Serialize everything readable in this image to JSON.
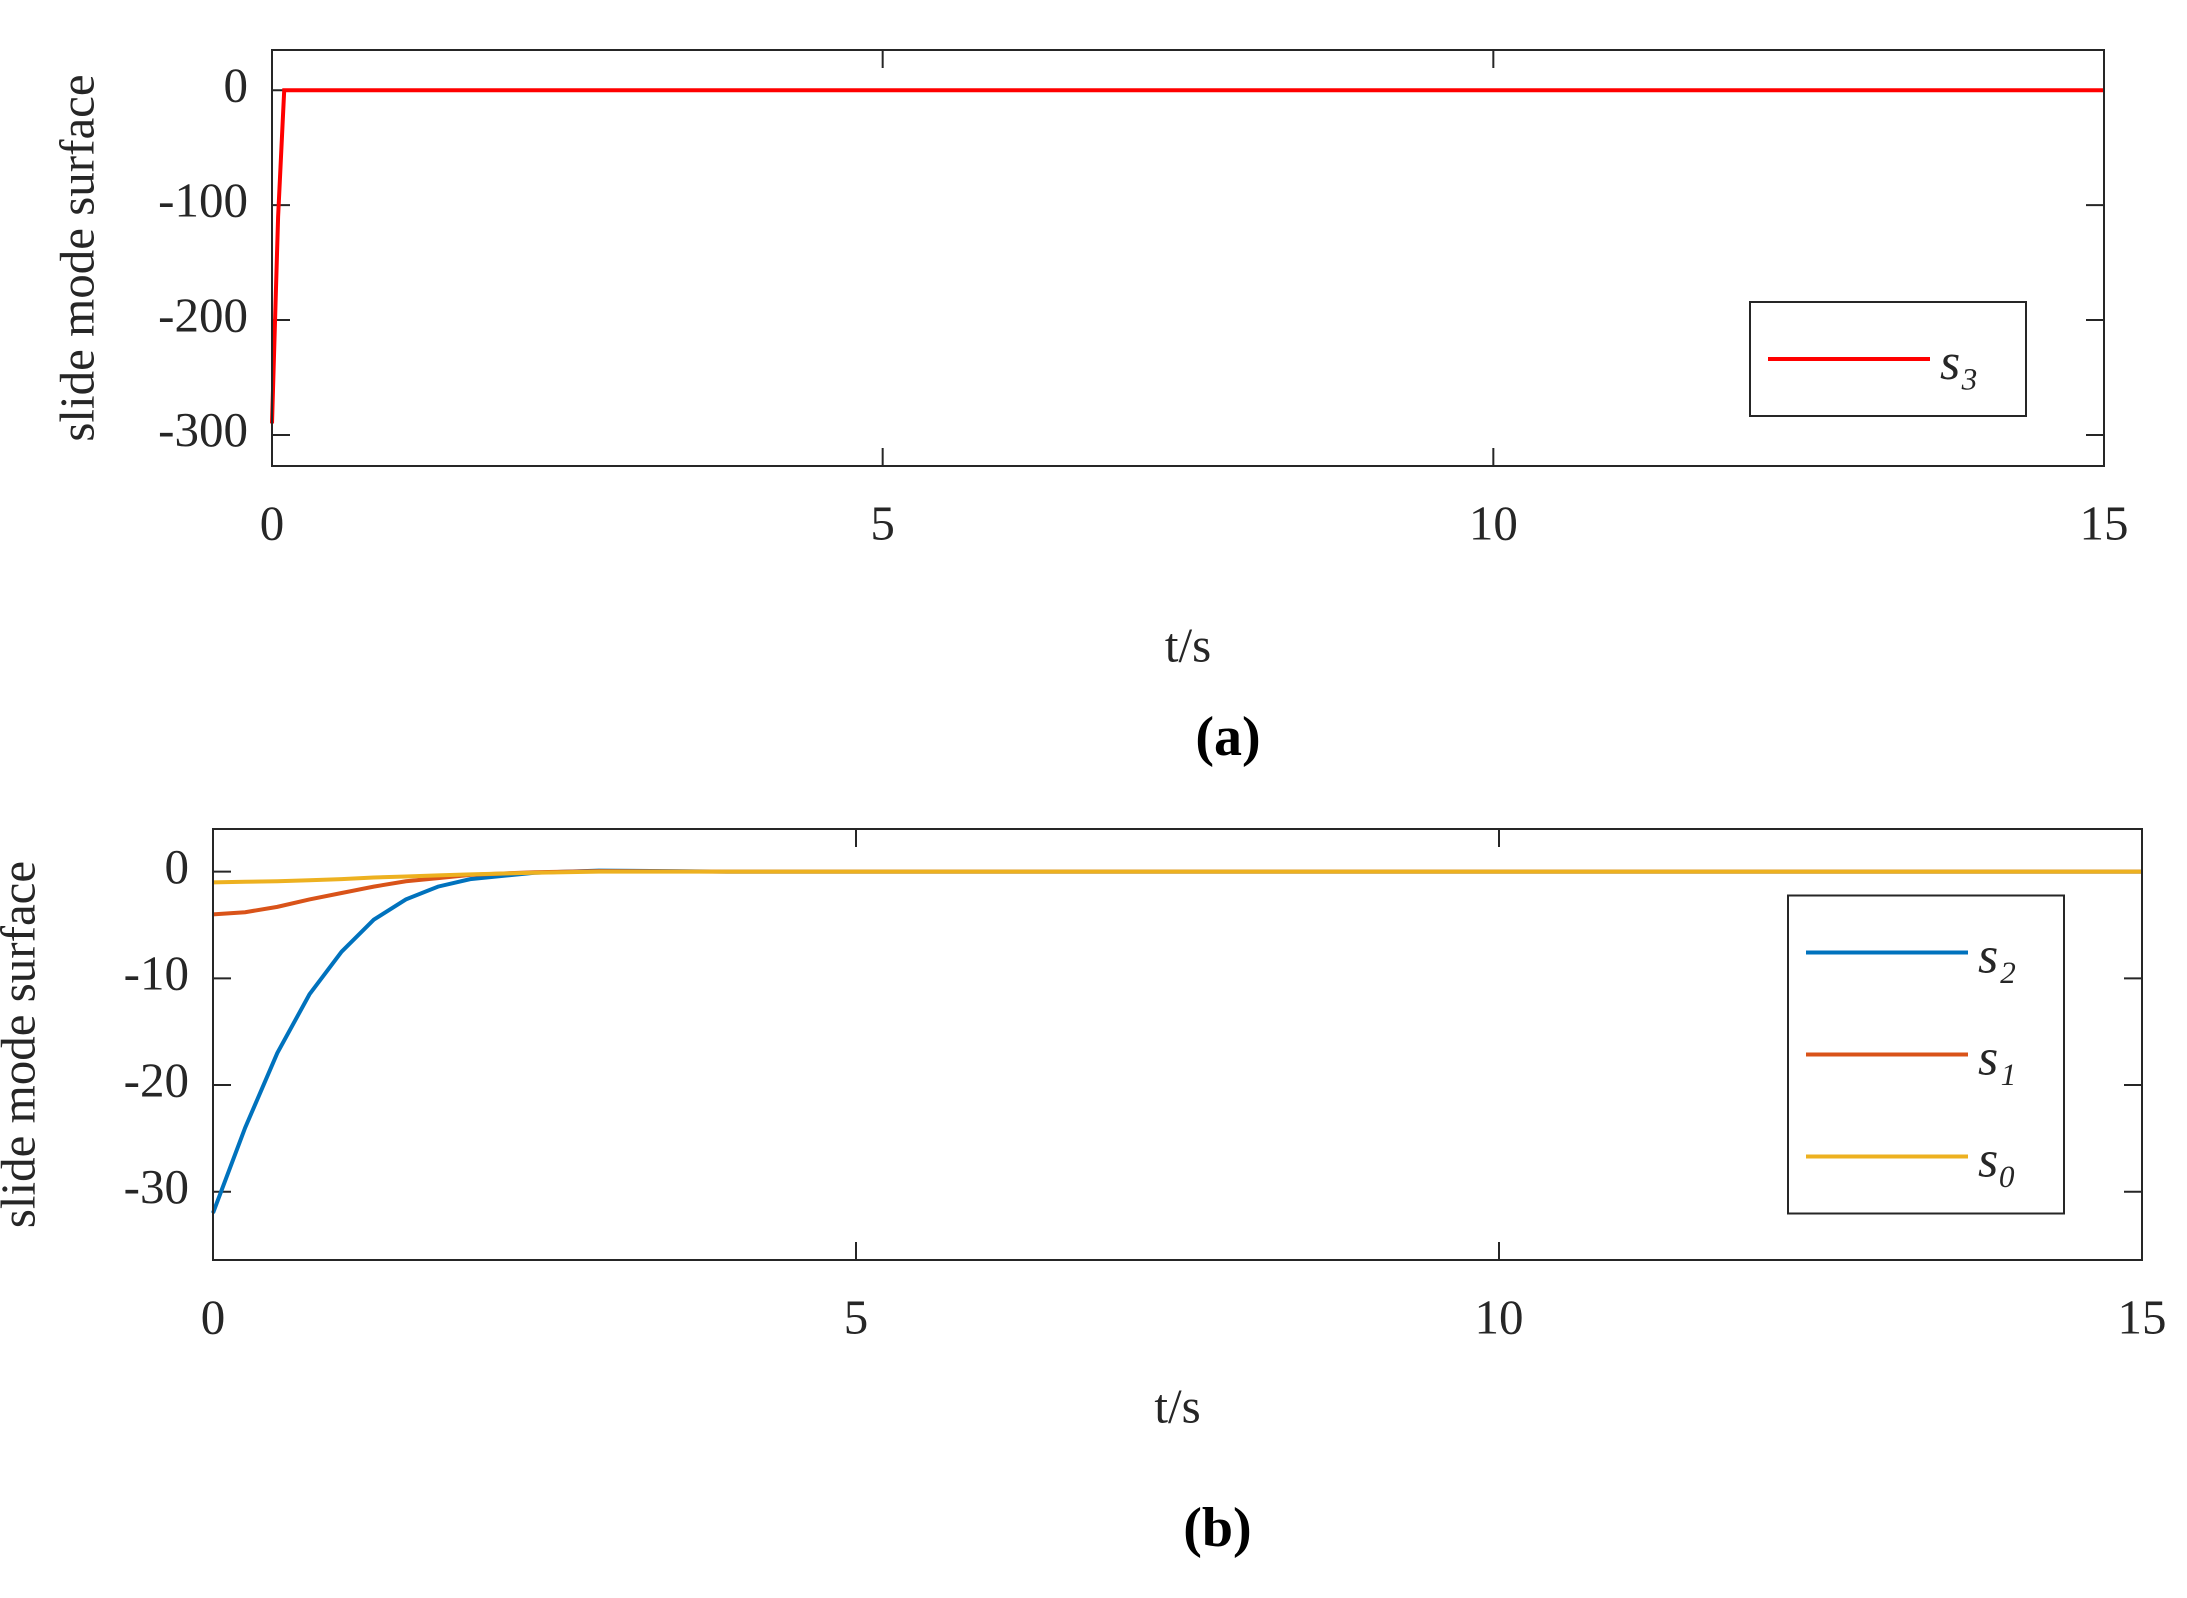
{
  "chart_data": [
    {
      "type": "line",
      "caption": "(a)",
      "xlabel": "t/s",
      "ylabel": "slide mode surface",
      "x": [
        0,
        0.05,
        0.1,
        0.5,
        15
      ],
      "series": [
        {
          "name": "s₃",
          "color": "#ff0000",
          "values": [
            -290,
            -110,
            0,
            0,
            0
          ]
        }
      ],
      "xlim": [
        0,
        15
      ],
      "xticks": [
        0,
        5,
        10,
        15
      ],
      "ylim": [
        -327,
        35
      ],
      "yticks": [
        -300,
        -200,
        -100,
        0
      ],
      "legend": "southeast"
    },
    {
      "type": "line",
      "caption": "(b)",
      "xlabel": "t/s",
      "ylabel": "slide mode surface",
      "x": [
        0,
        0.25,
        0.5,
        0.75,
        1,
        1.25,
        1.5,
        1.75,
        2,
        2.5,
        3,
        4,
        15
      ],
      "series": [
        {
          "name": "s₂",
          "color": "#0072bd",
          "values": [
            -32,
            -24,
            -17,
            -11.5,
            -7.5,
            -4.5,
            -2.6,
            -1.4,
            -0.7,
            -0.1,
            0.1,
            0,
            0
          ]
        },
        {
          "name": "s₁",
          "color": "#d95319",
          "values": [
            -4,
            -3.8,
            -3.3,
            -2.6,
            -2,
            -1.4,
            -0.9,
            -0.6,
            -0.3,
            -0.05,
            0.05,
            0,
            0
          ]
        },
        {
          "name": "s₀",
          "color": "#edb120",
          "values": [
            -1,
            -0.95,
            -0.9,
            -0.8,
            -0.7,
            -0.55,
            -0.45,
            -0.35,
            -0.25,
            -0.1,
            0,
            0,
            0
          ]
        }
      ],
      "xlim": [
        0,
        15
      ],
      "xticks": [
        0,
        5,
        10,
        15
      ],
      "ylim": [
        -36.4,
        4
      ],
      "yticks": [
        -30,
        -20,
        -10,
        0
      ],
      "legend": "east"
    }
  ]
}
